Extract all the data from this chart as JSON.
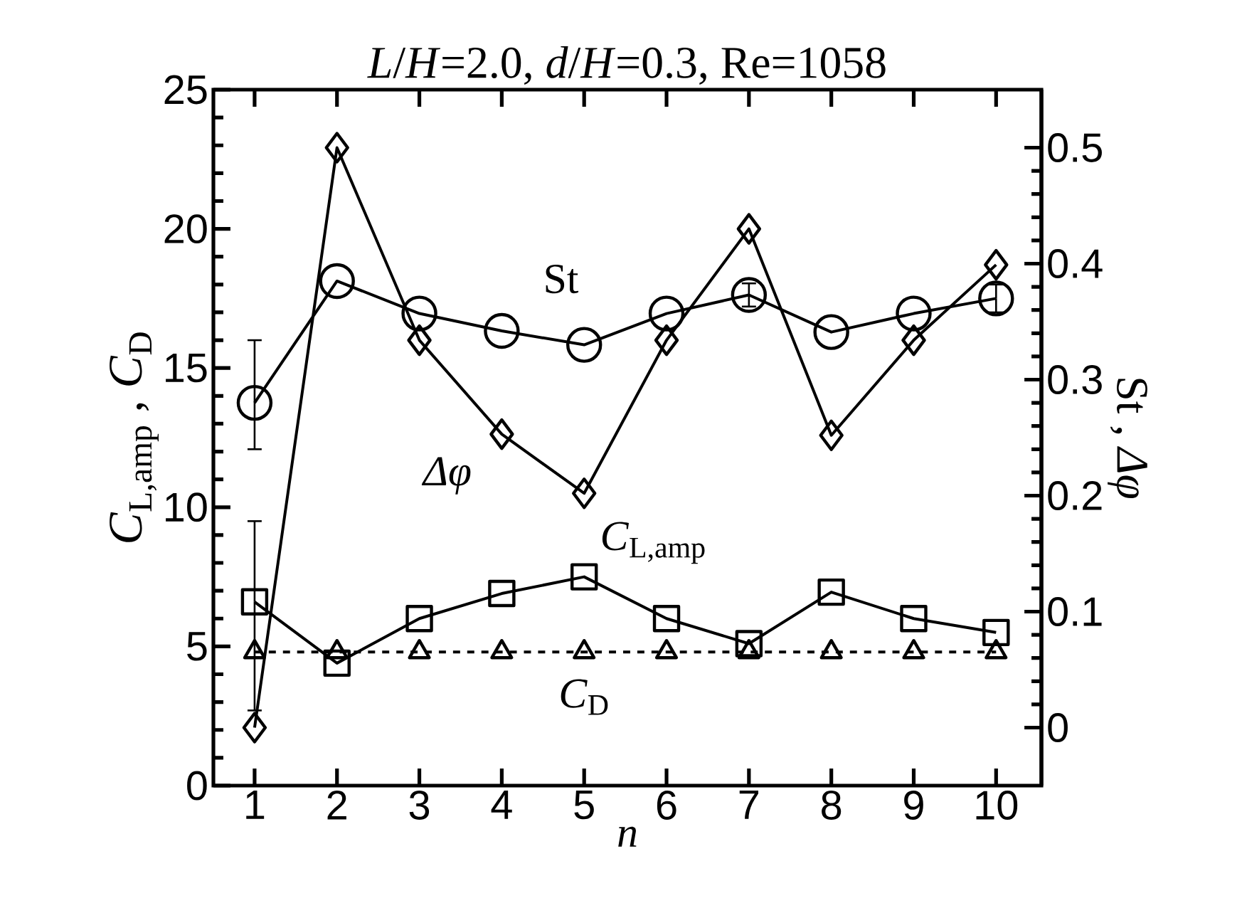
{
  "chart_data": {
    "type": "line",
    "title": "*L*/*H*=2.0, *d*/*H*=0.3, Re=1058",
    "xlabel": "*n*",
    "ylabel": "*C*$_{L,amp}$ , *C*$_{D}$",
    "y2label": "St , *Δφ*",
    "x": [
      1,
      2,
      3,
      4,
      5,
      6,
      7,
      8,
      9,
      10
    ],
    "xlim": [
      0.5,
      10.55
    ],
    "xticks": [
      1,
      2,
      3,
      4,
      5,
      6,
      7,
      8,
      9,
      10
    ],
    "ylim": [
      0,
      25
    ],
    "yticks": [
      0,
      5,
      10,
      15,
      20,
      25
    ],
    "y2lim": [
      -0.05,
      0.55
    ],
    "y2ticks": [
      0,
      0.1,
      0.2,
      0.3,
      0.4,
      0.5
    ],
    "grid": false,
    "series": [
      {
        "name": "*C*$_{L,amp}$",
        "color": "#000000",
        "marker": "square",
        "line_style": "solid",
        "values": [
          6.6,
          4.4,
          6.0,
          6.9,
          7.5,
          6.0,
          5.1,
          6.95,
          6.0,
          5.5
        ],
        "errors": [
          [
            2.7,
            9.5
          ],
          null,
          null,
          null,
          null,
          null,
          null,
          null,
          null,
          null
        ]
      },
      {
        "name": "*C*$_{D}$",
        "color": "#000000",
        "marker": "triangle",
        "line_style": "dashed",
        "values": [
          4.8,
          4.8,
          4.8,
          4.8,
          4.8,
          4.8,
          4.8,
          4.8,
          4.8,
          4.8
        ]
      },
      {
        "name": "St",
        "color": "#000000",
        "marker": "circle",
        "line_style": "solid",
        "axis": "y2",
        "values": [
          0.28,
          0.385,
          0.357,
          0.342,
          0.33,
          0.357,
          0.373,
          0.341,
          0.357,
          0.37
        ],
        "errors": [
          [
            0.24,
            0.334
          ],
          null,
          null,
          null,
          null,
          null,
          0.01,
          null,
          null,
          0.012
        ]
      },
      {
        "name": "*Δφ*",
        "color": "#000000",
        "marker": "diamond",
        "line_style": "solid",
        "axis": "y2",
        "values": [
          0.0,
          0.5,
          0.334,
          0.253,
          0.202,
          0.334,
          0.43,
          0.252,
          0.334,
          0.399
        ]
      }
    ]
  }
}
